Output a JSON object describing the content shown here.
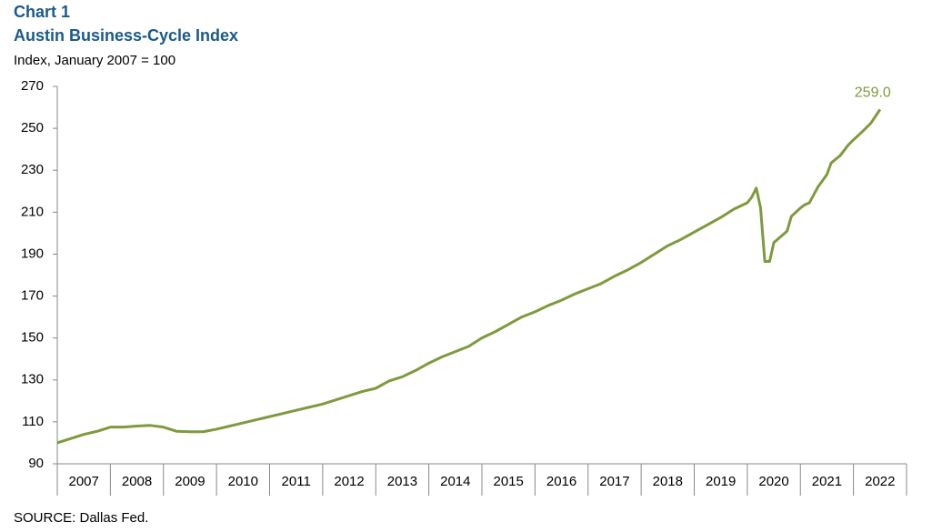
{
  "chart_data": {
    "type": "line",
    "title": "Chart 1",
    "subtitle": "Austin Business-Cycle Index",
    "y_label": "Index, January 2007 = 100",
    "source": "SOURCE: Dallas Fed.",
    "x": [
      2007.0,
      2007.25,
      2007.5,
      2007.75,
      2008.0,
      2008.25,
      2008.5,
      2008.75,
      2009.0,
      2009.25,
      2009.5,
      2009.75,
      2010.0,
      2010.25,
      2010.5,
      2010.75,
      2011.0,
      2011.25,
      2011.5,
      2011.75,
      2012.0,
      2012.25,
      2012.5,
      2012.75,
      2013.0,
      2013.25,
      2013.5,
      2013.75,
      2014.0,
      2014.25,
      2014.5,
      2014.75,
      2015.0,
      2015.25,
      2015.5,
      2015.75,
      2016.0,
      2016.25,
      2016.5,
      2016.75,
      2017.0,
      2017.25,
      2017.5,
      2017.75,
      2018.0,
      2018.25,
      2018.5,
      2018.75,
      2019.0,
      2019.25,
      2019.5,
      2019.75,
      2020.0,
      2020.08,
      2020.17,
      2020.25,
      2020.33,
      2020.42,
      2020.5,
      2020.75,
      2020.83,
      2021.0,
      2021.08,
      2021.17,
      2021.33,
      2021.5,
      2021.58,
      2021.75,
      2021.9,
      2022.0,
      2022.17,
      2022.25,
      2022.33,
      2022.5
    ],
    "series": [
      {
        "name": "Austin Business-Cycle Index",
        "color": "#7f9a3d",
        "values": [
          100,
          102,
          104,
          105.5,
          107.5,
          107.5,
          108,
          108.3,
          107.5,
          105.5,
          105.3,
          105.3,
          106.5,
          108,
          109.5,
          111,
          112.5,
          114,
          115.5,
          117,
          118.5,
          120.5,
          122.5,
          124.5,
          126,
          129.5,
          131.5,
          134.5,
          138,
          141,
          143.5,
          146,
          150,
          153,
          156.5,
          160,
          162.5,
          165.5,
          168,
          171,
          173.5,
          176,
          179.5,
          182.5,
          186,
          190,
          194,
          197,
          200.5,
          204,
          207.5,
          211.5,
          214.5,
          217,
          221.5,
          212,
          186.5,
          186.5,
          195.5,
          201,
          208,
          212,
          213.5,
          214.5,
          222,
          228,
          233.5,
          237,
          242,
          244.5,
          248.5,
          250.5,
          252.5,
          259
        ],
        "value_labels": [
          null,
          null,
          null,
          null,
          null,
          null,
          null,
          null,
          null,
          null,
          null,
          null,
          null,
          null,
          null,
          null,
          null,
          null,
          null,
          null,
          null,
          null,
          null,
          null,
          null,
          null,
          null,
          null,
          null,
          null,
          null,
          null,
          null,
          null,
          null,
          null,
          null,
          null,
          null,
          null,
          null,
          null,
          null,
          null,
          null,
          null,
          null,
          null,
          null,
          null,
          null,
          null,
          null,
          null,
          null,
          null,
          null,
          null,
          null,
          null,
          null,
          null,
          null,
          null,
          null,
          null,
          null,
          null,
          null,
          null,
          null,
          null,
          null,
          "259.0"
        ]
      }
    ],
    "xlim": [
      2007,
      2023
    ],
    "xticks": [
      2007,
      2008,
      2009,
      2010,
      2011,
      2012,
      2013,
      2014,
      2015,
      2016,
      2017,
      2018,
      2019,
      2020,
      2021,
      2022,
      2023
    ],
    "xlabels": [
      {
        "value": 2007.5,
        "label": "2007"
      },
      {
        "value": 2008.5,
        "label": "2008"
      },
      {
        "value": 2009.5,
        "label": "2009"
      },
      {
        "value": 2010.5,
        "label": "2010"
      },
      {
        "value": 2011.5,
        "label": "2011"
      },
      {
        "value": 2012.5,
        "label": "2012"
      },
      {
        "value": 2013.5,
        "label": "2013"
      },
      {
        "value": 2014.5,
        "label": "2014"
      },
      {
        "value": 2015.5,
        "label": "2015"
      },
      {
        "value": 2016.5,
        "label": "2016"
      },
      {
        "value": 2017.5,
        "label": "2017"
      },
      {
        "value": 2018.5,
        "label": "2018"
      },
      {
        "value": 2019.5,
        "label": "2019"
      },
      {
        "value": 2020.5,
        "label": "2020"
      },
      {
        "value": 2021.5,
        "label": "2021"
      },
      {
        "value": 2022.5,
        "label": "2022"
      }
    ],
    "ylim": [
      90,
      270
    ],
    "yticks": [
      90,
      110,
      130,
      150,
      170,
      190,
      210,
      230,
      250,
      270
    ],
    "grid": false
  }
}
